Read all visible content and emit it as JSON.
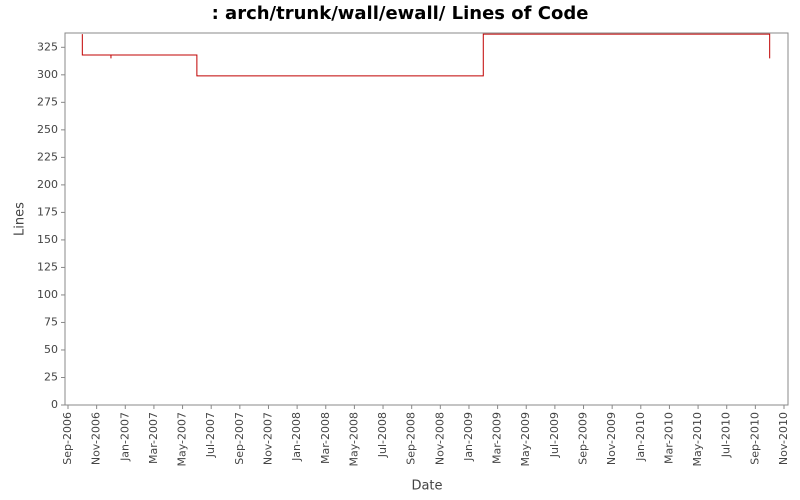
{
  "chart_data": {
    "type": "line",
    "title": ": arch/trunk/wall/ewall/ Lines of Code",
    "x_label": "Date",
    "y_label": "Lines",
    "x": [
      "2006-10",
      "2006-10",
      "2006-12",
      "2006-12",
      "2006-12",
      "2007-06",
      "2007-06",
      "2009-02",
      "2009-02",
      "2010-10",
      "2010-10"
    ],
    "series": [
      {
        "name": "Lines",
        "color": "#c00000",
        "values": [
          337,
          318,
          318,
          315,
          318,
          318,
          299,
          299,
          337,
          337,
          315
        ]
      }
    ],
    "xlim": [
      "2006-09",
      "2010-11"
    ],
    "xticks": [
      {
        "value": "2006-09",
        "label": "Sep-2006"
      },
      {
        "value": "2006-11",
        "label": "Nov-2006"
      },
      {
        "value": "2007-01",
        "label": "Jan-2007"
      },
      {
        "value": "2007-03",
        "label": "Mar-2007"
      },
      {
        "value": "2007-05",
        "label": "May-2007"
      },
      {
        "value": "2007-07",
        "label": "Jul-2007"
      },
      {
        "value": "2007-09",
        "label": "Sep-2007"
      },
      {
        "value": "2007-11",
        "label": "Nov-2007"
      },
      {
        "value": "2008-01",
        "label": "Jan-2008"
      },
      {
        "value": "2008-03",
        "label": "Mar-2008"
      },
      {
        "value": "2008-05",
        "label": "May-2008"
      },
      {
        "value": "2008-07",
        "label": "Jul-2008"
      },
      {
        "value": "2008-09",
        "label": "Sep-2008"
      },
      {
        "value": "2008-11",
        "label": "Nov-2008"
      },
      {
        "value": "2009-01",
        "label": "Jan-2009"
      },
      {
        "value": "2009-03",
        "label": "Mar-2009"
      },
      {
        "value": "2009-05",
        "label": "May-2009"
      },
      {
        "value": "2009-07",
        "label": "Jul-2009"
      },
      {
        "value": "2009-09",
        "label": "Sep-2009"
      },
      {
        "value": "2009-11",
        "label": "Nov-2009"
      },
      {
        "value": "2010-01",
        "label": "Jan-2010"
      },
      {
        "value": "2010-03",
        "label": "Mar-2010"
      },
      {
        "value": "2010-05",
        "label": "May-2010"
      },
      {
        "value": "2010-07",
        "label": "Jul-2010"
      },
      {
        "value": "2010-09",
        "label": "Sep-2010"
      },
      {
        "value": "2010-11",
        "label": "Nov-2010"
      }
    ],
    "ylim": [
      0,
      338
    ],
    "yticks": [
      0,
      25,
      50,
      75,
      100,
      125,
      150,
      175,
      200,
      225,
      250,
      275,
      300,
      325
    ],
    "grid": false
  }
}
